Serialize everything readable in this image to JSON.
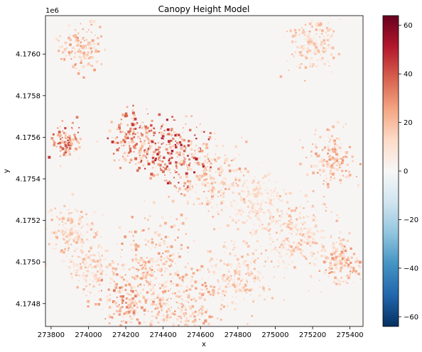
{
  "chart_data": {
    "type": "heatmap",
    "title": "Canopy Height Model",
    "xlabel": "x",
    "ylabel": "y",
    "y_offset_label": "1e6",
    "xlim": [
      273770,
      275470
    ],
    "ylim": [
      4174690,
      4176185
    ],
    "x_ticks": [
      {
        "value": 273800,
        "label": "273800"
      },
      {
        "value": 274000,
        "label": "274000"
      },
      {
        "value": 274200,
        "label": "274200"
      },
      {
        "value": 274400,
        "label": "274400"
      },
      {
        "value": 274600,
        "label": "274600"
      },
      {
        "value": 274800,
        "label": "274800"
      },
      {
        "value": 275000,
        "label": "275000"
      },
      {
        "value": 275200,
        "label": "275200"
      },
      {
        "value": 275400,
        "label": "275400"
      }
    ],
    "y_ticks": [
      {
        "value": 4174800,
        "label": "4.1748"
      },
      {
        "value": 4175000,
        "label": "4.1750"
      },
      {
        "value": 4175200,
        "label": "4.1752"
      },
      {
        "value": 4175400,
        "label": "4.1754"
      },
      {
        "value": 4175600,
        "label": "4.1756"
      },
      {
        "value": 4175800,
        "label": "4.1758"
      },
      {
        "value": 4176000,
        "label": "4.1760"
      }
    ],
    "colorbar": {
      "colormap": "RdBu_r",
      "min": -64,
      "max": 64,
      "ticks": [
        {
          "value": 60,
          "label": "60"
        },
        {
          "value": 40,
          "label": "40"
        },
        {
          "value": 20,
          "label": "20"
        },
        {
          "value": 0,
          "label": "0"
        },
        {
          "value": -20,
          "label": "−20"
        },
        {
          "value": -40,
          "label": "−40"
        },
        {
          "value": -60,
          "label": "−60"
        }
      ],
      "stops": [
        "#053061",
        "#2166ac",
        "#4393c3",
        "#92c5de",
        "#d1e5f0",
        "#f7f7f7",
        "#fddbc7",
        "#f4a582",
        "#d6604d",
        "#b2182b",
        "#67001f"
      ]
    },
    "canopy_clusters": [
      {
        "x": 274450,
        "y": 4175530,
        "spread": 200,
        "height": 45
      },
      {
        "x": 274250,
        "y": 4175600,
        "spread": 150,
        "height": 40
      },
      {
        "x": 273880,
        "y": 4175580,
        "spread": 90,
        "height": 40
      },
      {
        "x": 274200,
        "y": 4174800,
        "spread": 180,
        "height": 30
      },
      {
        "x": 273950,
        "y": 4176030,
        "spread": 130,
        "height": 25
      },
      {
        "x": 274650,
        "y": 4175400,
        "spread": 200,
        "height": 25
      },
      {
        "x": 274350,
        "y": 4175000,
        "spread": 220,
        "height": 25
      },
      {
        "x": 274800,
        "y": 4174950,
        "spread": 200,
        "height": 20
      },
      {
        "x": 275100,
        "y": 4175150,
        "spread": 220,
        "height": 20
      },
      {
        "x": 275300,
        "y": 4175500,
        "spread": 150,
        "height": 25
      },
      {
        "x": 275350,
        "y": 4175000,
        "spread": 130,
        "height": 25
      },
      {
        "x": 275200,
        "y": 4176050,
        "spread": 150,
        "height": 20
      },
      {
        "x": 274500,
        "y": 4174780,
        "spread": 200,
        "height": 25
      },
      {
        "x": 273900,
        "y": 4175150,
        "spread": 150,
        "height": 20
      },
      {
        "x": 274000,
        "y": 4174980,
        "spread": 130,
        "height": 20
      },
      {
        "x": 274900,
        "y": 4175300,
        "spread": 150,
        "height": 15
      }
    ]
  }
}
